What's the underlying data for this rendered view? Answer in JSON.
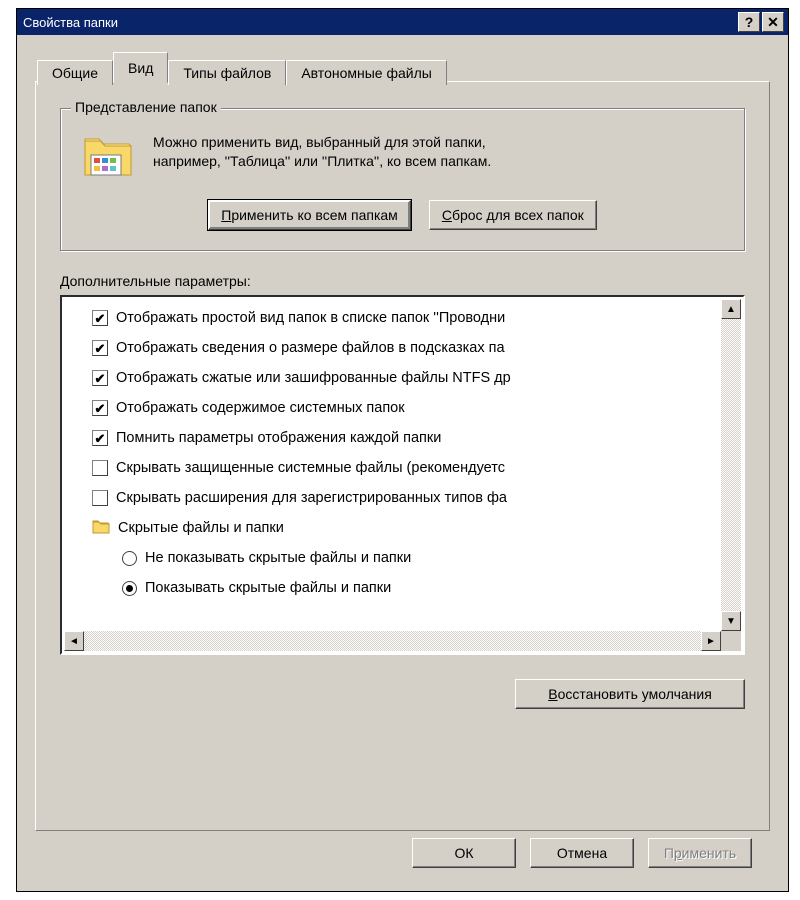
{
  "window": {
    "title": "Свойства папки"
  },
  "tabs": {
    "general": "Общие",
    "view": "Вид",
    "filetypes": "Типы файлов",
    "offline": "Автономные файлы",
    "active_index": 1
  },
  "folder_views": {
    "legend": "Представление папок",
    "description_line1": "Можно применить вид, выбранный для этой папки,",
    "description_line2": "например, ''Таблица'' или ''Плитка'', ко всем папкам.",
    "apply_all_label": "Применить ко всем папкам",
    "reset_all_label": "Сброс для всех папок"
  },
  "advanced": {
    "label": "Дополнительные параметры:",
    "items": [
      {
        "type": "checkbox",
        "checked": true,
        "label": "Отображать простой вид папок в списке папок ''Проводни"
      },
      {
        "type": "checkbox",
        "checked": true,
        "label": "Отображать сведения о размере файлов в подсказках па"
      },
      {
        "type": "checkbox",
        "checked": true,
        "label": "Отображать сжатые или зашифрованные файлы NTFS др"
      },
      {
        "type": "checkbox",
        "checked": true,
        "label": "Отображать содержимое системных папок"
      },
      {
        "type": "checkbox",
        "checked": true,
        "label": "Помнить параметры отображения каждой папки"
      },
      {
        "type": "checkbox",
        "checked": false,
        "label": "Скрывать защищенные системные файлы (рекомендуетс"
      },
      {
        "type": "checkbox",
        "checked": false,
        "label": "Скрывать расширения для зарегистрированных типов фа"
      },
      {
        "type": "folder",
        "label": "Скрытые файлы и папки"
      },
      {
        "type": "radio",
        "checked": false,
        "label": "Не показывать скрытые файлы и папки"
      },
      {
        "type": "radio",
        "checked": true,
        "label": "Показывать скрытые файлы и папки"
      }
    ],
    "restore_defaults": "Восстановить умолчания"
  },
  "dialog_buttons": {
    "ok": "ОК",
    "cancel": "Отмена",
    "apply": "Применить",
    "apply_u": "р"
  },
  "underlines": {
    "apply_all": "П",
    "reset_all": "С",
    "restore": "В"
  }
}
